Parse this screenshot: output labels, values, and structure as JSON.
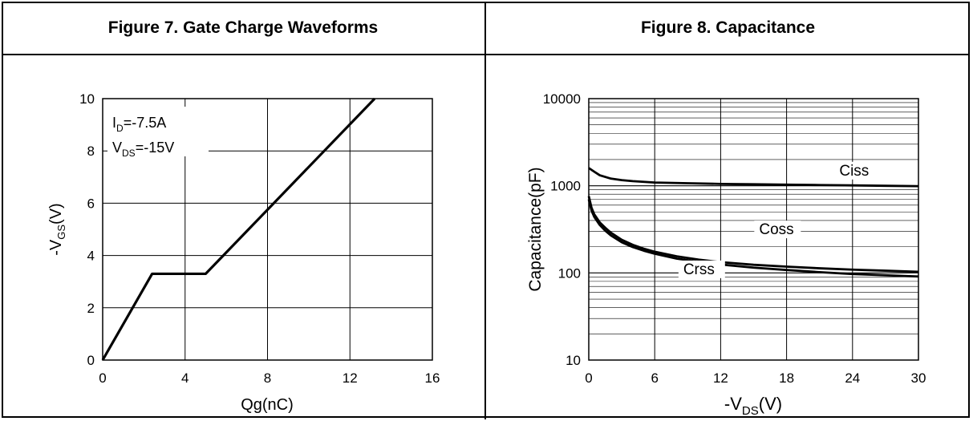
{
  "chart_data": [
    {
      "type": "line",
      "title": "Figure 7. Gate Charge Waveforms",
      "xlabel": "Qg(nC)",
      "ylabel": "-VGS(V)",
      "ylabel_main": "-V",
      "ylabel_sub": "GS",
      "ylabel_end": "(V)",
      "xlim": [
        0,
        16
      ],
      "ylim": [
        0,
        10
      ],
      "xticks": [
        0,
        4,
        8,
        12,
        16
      ],
      "yticks": [
        0,
        2,
        4,
        6,
        8,
        10
      ],
      "grid": true,
      "annotations": [
        {
          "main": "I",
          "sub": "D",
          "end": "=-7.5A"
        },
        {
          "main": "V",
          "sub": "DS",
          "end": "=-15V"
        }
      ],
      "series": [
        {
          "x": [
            0,
            2.4,
            5.0,
            13.2
          ],
          "y": [
            0,
            3.3,
            3.3,
            10
          ]
        }
      ]
    },
    {
      "type": "line",
      "title": "Figure 8. Capacitance",
      "xlabel": "-VDS(V)",
      "xlabel_main": "-V",
      "xlabel_sub": "DS",
      "xlabel_end": "(V)",
      "ylabel": "Capacitance(pF)",
      "xlim": [
        0,
        30
      ],
      "ylim": [
        10,
        10000
      ],
      "yscale": "log",
      "xticks": [
        0,
        6,
        12,
        18,
        24,
        30
      ],
      "yticks": [
        10,
        100,
        1000,
        10000
      ],
      "grid": true,
      "series": [
        {
          "name": "Ciss",
          "x": [
            0,
            0.5,
            1,
            2,
            3,
            4,
            6,
            9,
            12,
            15,
            18,
            21,
            24,
            27,
            30
          ],
          "y": [
            1600,
            1450,
            1320,
            1210,
            1160,
            1130,
            1090,
            1070,
            1050,
            1040,
            1030,
            1020,
            1010,
            1000,
            990
          ]
        },
        {
          "name": "Coss",
          "x": [
            0,
            0.25,
            0.5,
            1,
            1.5,
            2,
            3,
            4,
            5,
            6,
            8,
            10,
            12,
            15,
            18,
            21,
            24,
            27,
            30
          ],
          "y": [
            760,
            560,
            470,
            380,
            330,
            290,
            240,
            210,
            190,
            175,
            155,
            142,
            133,
            124,
            118,
            113,
            109,
            106,
            103
          ]
        },
        {
          "name": "Crss",
          "x": [
            0,
            0.25,
            0.5,
            1,
            1.5,
            2,
            3,
            4,
            5,
            6,
            8,
            10,
            12,
            15,
            18,
            21,
            24,
            27,
            30
          ],
          "y": [
            700,
            520,
            440,
            355,
            305,
            270,
            225,
            198,
            180,
            166,
            146,
            134,
            125,
            115,
            108,
            102,
            97,
            94,
            91
          ]
        }
      ]
    }
  ]
}
